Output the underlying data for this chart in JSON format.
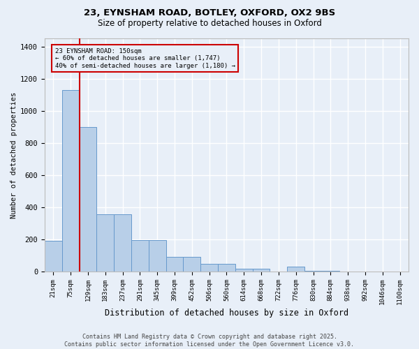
{
  "title_line1": "23, EYNSHAM ROAD, BOTLEY, OXFORD, OX2 9BS",
  "title_line2": "Size of property relative to detached houses in Oxford",
  "xlabel": "Distribution of detached houses by size in Oxford",
  "ylabel": "Number of detached properties",
  "categories": [
    "21sqm",
    "75sqm",
    "129sqm",
    "183sqm",
    "237sqm",
    "291sqm",
    "345sqm",
    "399sqm",
    "452sqm",
    "506sqm",
    "560sqm",
    "614sqm",
    "668sqm",
    "722sqm",
    "776sqm",
    "830sqm",
    "884sqm",
    "938sqm",
    "992sqm",
    "1046sqm",
    "1100sqm"
  ],
  "values": [
    193,
    1130,
    900,
    355,
    355,
    195,
    195,
    90,
    90,
    48,
    48,
    17,
    17,
    0,
    30,
    5,
    5,
    0,
    0,
    0,
    0
  ],
  "bar_color": "#b8cfe8",
  "bar_edge_color": "#6699cc",
  "background_color": "#e8eff8",
  "grid_color": "#ffffff",
  "vline_x": 1.5,
  "vline_color": "#cc0000",
  "annotation_text": "23 EYNSHAM ROAD: 150sqm\n← 60% of detached houses are smaller (1,747)\n40% of semi-detached houses are larger (1,180) →",
  "annotation_box_color": "#cc0000",
  "footer_line1": "Contains HM Land Registry data © Crown copyright and database right 2025.",
  "footer_line2": "Contains public sector information licensed under the Open Government Licence v3.0.",
  "ylim": [
    0,
    1450
  ],
  "yticks": [
    0,
    200,
    400,
    600,
    800,
    1000,
    1200,
    1400
  ]
}
